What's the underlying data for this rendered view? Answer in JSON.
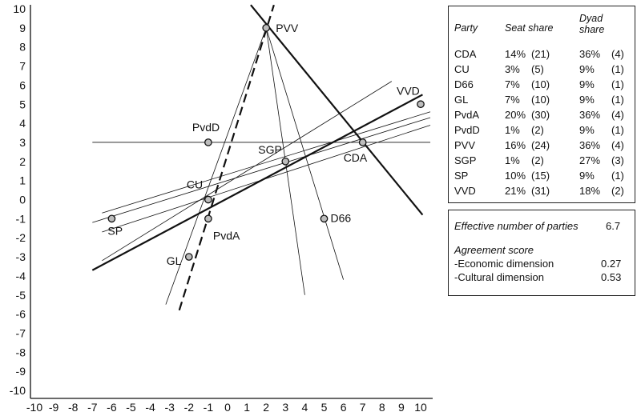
{
  "chart_data": {
    "type": "scatter",
    "xlim": [
      -10,
      10
    ],
    "ylim": [
      -10,
      10
    ],
    "x_ticks": [
      "-10",
      "-9",
      "-8",
      "-7",
      "-6",
      "-5",
      "-4",
      "-3",
      "-2",
      "-1",
      "0",
      "1",
      "2",
      "3",
      "4",
      "5",
      "6",
      "7",
      "8",
      "9",
      "10"
    ],
    "y_ticks": [
      "10",
      "9",
      "8",
      "7",
      "6",
      "5",
      "4",
      "3",
      "2",
      "1",
      "0",
      "-1",
      "-2",
      "-3",
      "-4",
      "-5",
      "-6",
      "-7",
      "-8",
      "-9",
      "-10"
    ],
    "points": [
      {
        "name": "PVV",
        "x": 2,
        "y": 9
      },
      {
        "name": "PvdD",
        "x": -1,
        "y": 3
      },
      {
        "name": "VVD",
        "x": 10,
        "y": 5
      },
      {
        "name": "SGP",
        "x": 3,
        "y": 2
      },
      {
        "name": "CDA",
        "x": 7,
        "y": 3
      },
      {
        "name": "CU",
        "x": -1,
        "y": 0
      },
      {
        "name": "SP",
        "x": -6,
        "y": -1
      },
      {
        "name": "PvdA",
        "x": -1,
        "y": -1
      },
      {
        "name": "D66",
        "x": 5,
        "y": -1
      },
      {
        "name": "GL",
        "x": -2,
        "y": -3
      }
    ],
    "lines": [
      {
        "style": "thick",
        "x1": 1.2,
        "y1": 10.2,
        "x2": 10.1,
        "y2": -0.8
      },
      {
        "style": "thick",
        "x1": -7,
        "y1": -3.7,
        "x2": 10.1,
        "y2": 5.5
      },
      {
        "style": "dashed",
        "x1": -2.5,
        "y1": -5.8,
        "x2": 2.4,
        "y2": 10.2
      },
      {
        "style": "thin",
        "x1": -7,
        "y1": 3,
        "x2": 10.5,
        "y2": 3
      },
      {
        "style": "thin",
        "x1": 2,
        "y1": 9,
        "x2": 4,
        "y2": -5
      },
      {
        "style": "thin",
        "x1": 2,
        "y1": 9,
        "x2": 6,
        "y2": -4.2
      },
      {
        "style": "thin",
        "x1": 2,
        "y1": 9,
        "x2": -3.2,
        "y2": -5.5
      },
      {
        "style": "thin",
        "x1": -6.5,
        "y1": -3.2,
        "x2": 8.5,
        "y2": 6.2
      },
      {
        "style": "thin",
        "x1": -7,
        "y1": -1.2,
        "x2": 10.5,
        "y2": 4.3
      },
      {
        "style": "thin",
        "x1": -6.5,
        "y1": -1.7,
        "x2": 10.5,
        "y2": 3.9
      },
      {
        "style": "thin",
        "x1": -6.5,
        "y1": -0.7,
        "x2": 10.5,
        "y2": 4.6
      }
    ]
  },
  "table": {
    "headers": {
      "party": "Party",
      "seat_share": "Seat share",
      "dyad_line1": "Dyad",
      "dyad_line2": "share"
    },
    "rows": [
      {
        "party": "CDA",
        "seat_pct": "14%",
        "seat_n": "(21)",
        "dyad_pct": "36%",
        "dyad_n": "(4)"
      },
      {
        "party": "CU",
        "seat_pct": "3%",
        "seat_n": "(5)",
        "dyad_pct": "9%",
        "dyad_n": "(1)"
      },
      {
        "party": "D66",
        "seat_pct": "7%",
        "seat_n": "(10)",
        "dyad_pct": "9%",
        "dyad_n": "(1)"
      },
      {
        "party": "GL",
        "seat_pct": "7%",
        "seat_n": "(10)",
        "dyad_pct": "9%",
        "dyad_n": "(1)"
      },
      {
        "party": "PvdA",
        "seat_pct": "20%",
        "seat_n": "(30)",
        "dyad_pct": "36%",
        "dyad_n": "(4)"
      },
      {
        "party": "PvdD",
        "seat_pct": "1%",
        "seat_n": "(2)",
        "dyad_pct": "9%",
        "dyad_n": "(1)"
      },
      {
        "party": "PVV",
        "seat_pct": "16%",
        "seat_n": "(24)",
        "dyad_pct": "36%",
        "dyad_n": "(4)"
      },
      {
        "party": "SGP",
        "seat_pct": "1%",
        "seat_n": "(2)",
        "dyad_pct": "27%",
        "dyad_n": "(3)"
      },
      {
        "party": "SP",
        "seat_pct": "10%",
        "seat_n": "(15)",
        "dyad_pct": "9%",
        "dyad_n": "(1)"
      },
      {
        "party": "VVD",
        "seat_pct": "21%",
        "seat_n": "(31)",
        "dyad_pct": "18%",
        "dyad_n": "(2)"
      }
    ]
  },
  "stats": {
    "enp_label": "Effective number of parties",
    "enp_value": "6.7",
    "agreement_label": "Agreement score",
    "economic_label": "-Economic dimension",
    "economic_value": "0.27",
    "cultural_label": "-Cultural dimension",
    "cultural_value": "0.53"
  }
}
